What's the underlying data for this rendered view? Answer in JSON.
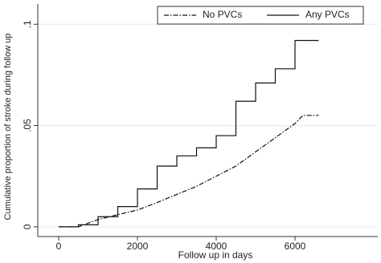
{
  "chart_data": {
    "type": "line",
    "x_label": "Follow up in days",
    "y_label": "Cumulative proportion of stroke during follow up",
    "x": [
      0,
      500,
      1000,
      1500,
      2000,
      2500,
      3000,
      3500,
      4000,
      4500,
      5000,
      5500,
      6000,
      6200,
      6600
    ],
    "series": [
      {
        "name": "No PVCs",
        "color": "#111111",
        "style": "dashdot",
        "step": false,
        "values": [
          0,
          0,
          0.0036,
          0.006,
          0.0083,
          0.012,
          0.016,
          0.02,
          0.025,
          0.03,
          0.037,
          0.044,
          0.051,
          0.055,
          0.055
        ]
      },
      {
        "name": "Any PVCs",
        "color": "#111111",
        "style": "solid",
        "step": true,
        "values": [
          0,
          0.001,
          0.005,
          0.01,
          0.0187,
          0.03,
          0.035,
          0.039,
          0.045,
          0.062,
          0.071,
          0.078,
          0.092,
          0.092,
          0.092
        ]
      }
    ],
    "xlim": [
      -531,
      8102
    ],
    "ylim": [
      -0.0048,
      0.11
    ],
    "xticks": [
      0,
      2000,
      4000,
      6000
    ],
    "yticks": [
      0,
      {
        "value": 0.05,
        "label": ".05"
      },
      {
        "value": 0.1,
        "label": ".1"
      }
    ],
    "grid": true,
    "legend_position": "top-right"
  }
}
